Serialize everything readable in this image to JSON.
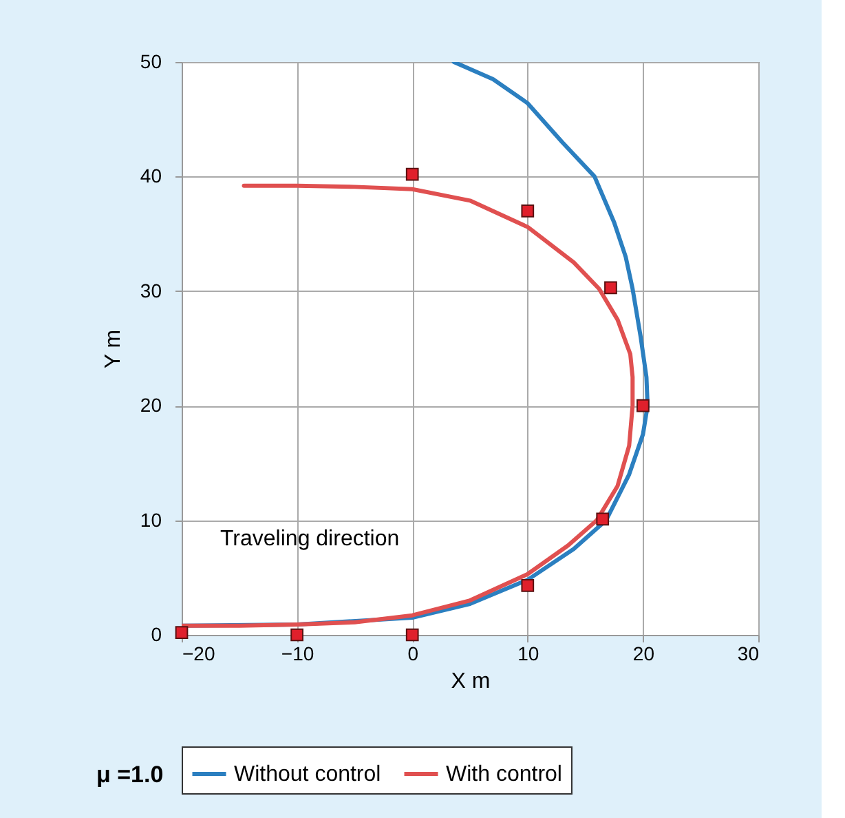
{
  "chart_data": {
    "type": "line",
    "xlabel": "X  m",
    "ylabel": "Y  m",
    "xlim": [
      -20,
      30
    ],
    "ylim": [
      0,
      50
    ],
    "xticks": [
      -20,
      -10,
      0,
      10,
      20,
      30
    ],
    "yticks": [
      0,
      10,
      20,
      30,
      40,
      50
    ],
    "grid": true,
    "legend": "bottom",
    "line_style": "solid",
    "annotations": [
      "Traveling direction",
      "μ =1.0"
    ],
    "series": [
      {
        "name": "Without control",
        "color": "#2b7fc0",
        "x": [
          -20,
          -10,
          0,
          5,
          10,
          14,
          16.8,
          18.8,
          20,
          20.4,
          20.3,
          19.8,
          19.1,
          18.5,
          17.5,
          15.8,
          13,
          10,
          7,
          3.6
        ],
        "values": [
          0.8,
          0.9,
          1.5,
          2.7,
          4.8,
          7.5,
          10,
          14,
          17.5,
          20,
          22.5,
          26,
          30.2,
          33,
          36,
          40,
          43,
          46.4,
          48.5,
          50
        ]
      },
      {
        "name": "With control",
        "color": "#e05050",
        "x": [
          -20,
          -15,
          -10,
          -5,
          0,
          5,
          10,
          13.5,
          16,
          17.8,
          18.8,
          19.1,
          19.1,
          18.9,
          17.8,
          16.2,
          14,
          10,
          5,
          0,
          -5,
          -10,
          -14.6
        ],
        "values": [
          0.8,
          0.8,
          0.9,
          1.1,
          1.7,
          3.0,
          5.3,
          7.8,
          10,
          13,
          16.5,
          20,
          22.5,
          24.5,
          27.5,
          30.2,
          32.5,
          35.6,
          37.9,
          38.9,
          39.1,
          39.2,
          39.2
        ]
      },
      {
        "color": "#e0202c",
        "type": "scatter",
        "marker": "square",
        "x": [
          -20,
          -10,
          0,
          10,
          16.5,
          20,
          17.2,
          10,
          0
        ],
        "values": [
          0.2,
          0,
          0,
          4.3,
          10.1,
          20,
          30.3,
          37,
          40.2
        ]
      }
    ]
  }
}
